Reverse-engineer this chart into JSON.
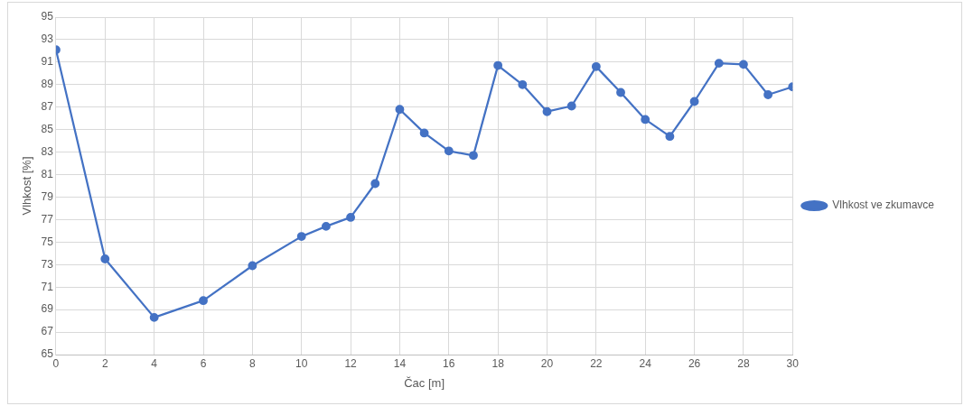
{
  "chart_data": {
    "type": "line",
    "xlabel": "Čac [m]",
    "ylabel": "Vlhkost [%]",
    "x": [
      0,
      2,
      4,
      6,
      8,
      10,
      11,
      12,
      13,
      14,
      15,
      16,
      17,
      18,
      19,
      20,
      21,
      22,
      23,
      24,
      25,
      26,
      27,
      28,
      29,
      30
    ],
    "series": [
      {
        "name": "Vlhkost ve zkumavce",
        "color": "#4472c4",
        "values": [
          92.1,
          73.5,
          68.3,
          69.8,
          72.9,
          75.5,
          76.4,
          77.2,
          80.2,
          86.8,
          84.7,
          83.1,
          82.7,
          90.7,
          89.0,
          86.6,
          87.1,
          90.6,
          88.3,
          85.9,
          84.4,
          87.5,
          90.9,
          90.8,
          88.1,
          88.8
        ]
      }
    ],
    "xlim": [
      0,
      30
    ],
    "xticks": [
      0,
      2,
      4,
      6,
      8,
      10,
      12,
      14,
      16,
      18,
      20,
      22,
      24,
      26,
      28,
      30
    ],
    "ylim": [
      65,
      95
    ],
    "yticks": [
      65,
      67,
      69,
      71,
      73,
      75,
      77,
      79,
      81,
      83,
      85,
      87,
      89,
      91,
      93,
      95
    ],
    "grid": true,
    "legend": "right",
    "marker": "circle",
    "line_style": "solid"
  }
}
